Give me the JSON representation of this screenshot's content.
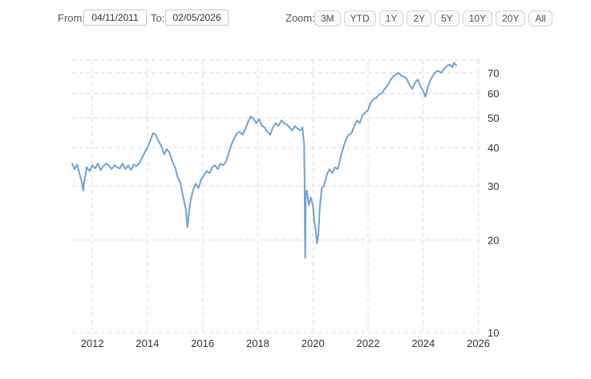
{
  "range": {
    "from_label": "From:",
    "from_value": "04/11/2011",
    "to_label": "To:",
    "to_value": "02/05/2026"
  },
  "zoom": {
    "label": "Zoom:",
    "buttons": [
      "3M",
      "YTD",
      "1Y",
      "2Y",
      "5Y",
      "10Y",
      "20Y",
      "All"
    ]
  },
  "colors": {
    "series": "#6fa3d4",
    "grid": "#dddddd"
  },
  "chart_data": {
    "type": "line",
    "title": "",
    "xlabel": "",
    "ylabel": "",
    "y_scale": "log",
    "grid": "dashed",
    "x_ticks": [
      "2012",
      "2014",
      "2016",
      "2018",
      "2020",
      "2022",
      "2024",
      "2026"
    ],
    "y_ticks": [
      10,
      20,
      30,
      40,
      50,
      60,
      70
    ],
    "xlim": [
      2011.27,
      2026.1
    ],
    "ylim": [
      10,
      77
    ],
    "series": [
      {
        "values": [
          [
            2011.27,
            35.5
          ],
          [
            2011.35,
            34.0
          ],
          [
            2011.45,
            35.2
          ],
          [
            2011.55,
            32.5
          ],
          [
            2011.62,
            31.0
          ],
          [
            2011.67,
            29.0
          ],
          [
            2011.72,
            31.5
          ],
          [
            2011.8,
            34.5
          ],
          [
            2011.9,
            33.5
          ],
          [
            2012.0,
            35.0
          ],
          [
            2012.1,
            34.2
          ],
          [
            2012.2,
            35.5
          ],
          [
            2012.3,
            33.8
          ],
          [
            2012.4,
            34.8
          ],
          [
            2012.5,
            35.5
          ],
          [
            2012.6,
            35.0
          ],
          [
            2012.7,
            34.0
          ],
          [
            2012.8,
            35.0
          ],
          [
            2012.9,
            34.5
          ],
          [
            2013.0,
            34.2
          ],
          [
            2013.1,
            35.5
          ],
          [
            2013.2,
            34.0
          ],
          [
            2013.3,
            35.0
          ],
          [
            2013.4,
            33.8
          ],
          [
            2013.5,
            35.2
          ],
          [
            2013.6,
            34.8
          ],
          [
            2013.7,
            35.5
          ],
          [
            2013.8,
            37.0
          ],
          [
            2013.9,
            38.5
          ],
          [
            2014.0,
            40.0
          ],
          [
            2014.1,
            42.0
          ],
          [
            2014.2,
            44.5
          ],
          [
            2014.3,
            44.0
          ],
          [
            2014.4,
            42.0
          ],
          [
            2014.5,
            40.5
          ],
          [
            2014.6,
            38.0
          ],
          [
            2014.7,
            39.5
          ],
          [
            2014.8,
            38.5
          ],
          [
            2014.9,
            36.0
          ],
          [
            2015.0,
            34.5
          ],
          [
            2015.1,
            32.0
          ],
          [
            2015.2,
            30.5
          ],
          [
            2015.3,
            27.5
          ],
          [
            2015.4,
            25.0
          ],
          [
            2015.45,
            22.0
          ],
          [
            2015.55,
            26.5
          ],
          [
            2015.65,
            29.0
          ],
          [
            2015.75,
            30.5
          ],
          [
            2015.85,
            29.5
          ],
          [
            2015.95,
            31.5
          ],
          [
            2016.05,
            32.5
          ],
          [
            2016.15,
            33.5
          ],
          [
            2016.25,
            33.0
          ],
          [
            2016.35,
            34.5
          ],
          [
            2016.45,
            35.0
          ],
          [
            2016.55,
            34.0
          ],
          [
            2016.65,
            35.5
          ],
          [
            2016.75,
            35.0
          ],
          [
            2016.85,
            36.0
          ],
          [
            2016.95,
            38.5
          ],
          [
            2017.05,
            41.0
          ],
          [
            2017.15,
            43.0
          ],
          [
            2017.25,
            44.5
          ],
          [
            2017.35,
            45.0
          ],
          [
            2017.45,
            44.0
          ],
          [
            2017.55,
            46.0
          ],
          [
            2017.65,
            48.5
          ],
          [
            2017.75,
            50.5
          ],
          [
            2017.85,
            49.5
          ],
          [
            2017.95,
            48.0
          ],
          [
            2018.05,
            49.5
          ],
          [
            2018.15,
            47.0
          ],
          [
            2018.25,
            46.5
          ],
          [
            2018.35,
            45.0
          ],
          [
            2018.45,
            44.0
          ],
          [
            2018.55,
            46.5
          ],
          [
            2018.65,
            48.0
          ],
          [
            2018.75,
            47.0
          ],
          [
            2018.85,
            49.0
          ],
          [
            2018.95,
            48.0
          ],
          [
            2019.05,
            47.5
          ],
          [
            2019.15,
            46.5
          ],
          [
            2019.25,
            45.5
          ],
          [
            2019.35,
            47.0
          ],
          [
            2019.45,
            46.0
          ],
          [
            2019.55,
            45.5
          ],
          [
            2019.62,
            46.5
          ],
          [
            2019.68,
            41.0
          ],
          [
            2019.7,
            31.0
          ],
          [
            2019.71,
            22.0
          ],
          [
            2019.72,
            17.5
          ],
          [
            2019.74,
            28.5
          ],
          [
            2019.78,
            29.0
          ],
          [
            2019.85,
            26.0
          ],
          [
            2019.92,
            27.5
          ],
          [
            2020.0,
            26.0
          ],
          [
            2020.05,
            23.0
          ],
          [
            2020.1,
            21.5
          ],
          [
            2020.15,
            19.5
          ],
          [
            2020.2,
            21.0
          ],
          [
            2020.25,
            25.5
          ],
          [
            2020.32,
            29.5
          ],
          [
            2020.4,
            30.0
          ],
          [
            2020.5,
            32.5
          ],
          [
            2020.6,
            34.0
          ],
          [
            2020.7,
            33.0
          ],
          [
            2020.8,
            34.5
          ],
          [
            2020.9,
            34.0
          ],
          [
            2021.0,
            37.0
          ],
          [
            2021.1,
            40.0
          ],
          [
            2021.2,
            42.5
          ],
          [
            2021.3,
            44.0
          ],
          [
            2021.4,
            44.5
          ],
          [
            2021.5,
            47.0
          ],
          [
            2021.6,
            49.0
          ],
          [
            2021.7,
            48.0
          ],
          [
            2021.8,
            51.0
          ],
          [
            2021.9,
            52.0
          ],
          [
            2022.0,
            53.0
          ],
          [
            2022.1,
            56.0
          ],
          [
            2022.2,
            57.5
          ],
          [
            2022.3,
            58.0
          ],
          [
            2022.4,
            59.5
          ],
          [
            2022.5,
            60.0
          ],
          [
            2022.6,
            62.0
          ],
          [
            2022.7,
            63.5
          ],
          [
            2022.8,
            66.0
          ],
          [
            2022.9,
            68.0
          ],
          [
            2023.0,
            69.0
          ],
          [
            2023.1,
            70.0
          ],
          [
            2023.2,
            68.5
          ],
          [
            2023.3,
            68.0
          ],
          [
            2023.4,
            67.0
          ],
          [
            2023.5,
            64.0
          ],
          [
            2023.6,
            62.0
          ],
          [
            2023.7,
            65.0
          ],
          [
            2023.8,
            66.5
          ],
          [
            2023.9,
            63.5
          ],
          [
            2024.0,
            61.0
          ],
          [
            2024.08,
            58.5
          ],
          [
            2024.15,
            62.0
          ],
          [
            2024.25,
            66.0
          ],
          [
            2024.35,
            68.5
          ],
          [
            2024.45,
            70.5
          ],
          [
            2024.55,
            71.0
          ],
          [
            2024.65,
            70.0
          ],
          [
            2024.75,
            72.0
          ],
          [
            2024.85,
            73.5
          ],
          [
            2024.95,
            74.5
          ],
          [
            2025.05,
            73.0
          ],
          [
            2025.12,
            75.5
          ],
          [
            2025.2,
            74.0
          ]
        ]
      }
    ]
  }
}
